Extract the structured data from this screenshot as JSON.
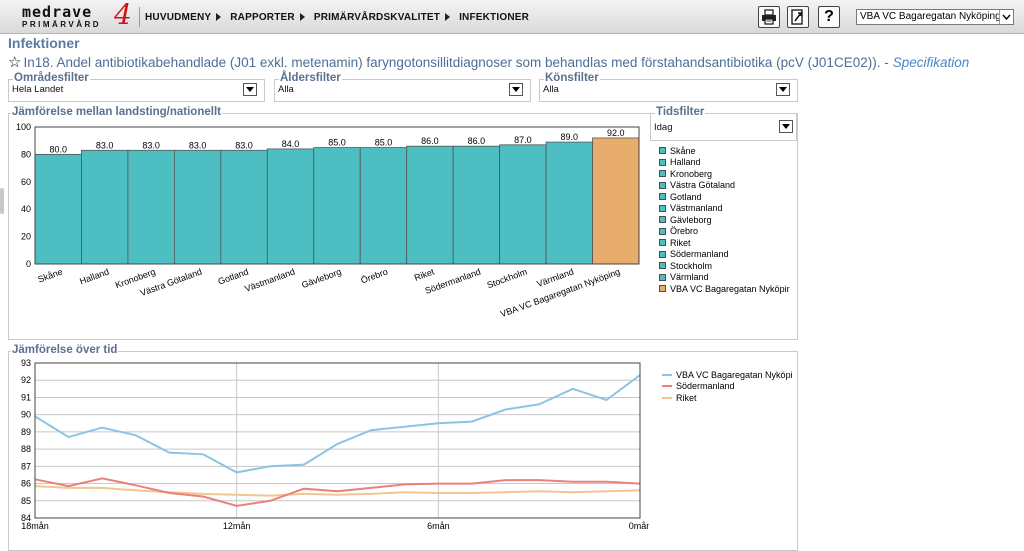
{
  "app": {
    "logo_text": "medrave",
    "logo_sub": "PRIMÄRVÅRD",
    "logo_version": "4"
  },
  "nav": [
    {
      "label": "HUVUDMENY"
    },
    {
      "label": "RAPPORTER"
    },
    {
      "label": "PRIMÄRVÅRDSKVALITET"
    },
    {
      "label": "INFEKTIONER"
    }
  ],
  "toolbar": {
    "print_icon": "printer-icon",
    "export_icon": "export-icon",
    "help_icon": "help-icon",
    "help_label": "?",
    "unit_selected": "VBA VC Bagaregatan Nyköping"
  },
  "page": {
    "title": "Infektioner",
    "indicator": "In18. Andel antibiotikabehandlade (J01 exkl. metenamin) faryngotonsillitdiagnoser som behandlas med förstahandsantibiotika (pcV (J01CE02)). -",
    "spec_link": "Specifikation"
  },
  "filters": {
    "area": {
      "label": "Områdesfilter",
      "value": "Hela Landet"
    },
    "age": {
      "label": "Åldersfilter",
      "value": "Alla"
    },
    "sex": {
      "label": "Könsfilter",
      "value": "Alla"
    },
    "time": {
      "label": "Tidsfilter",
      "value": "Idag"
    }
  },
  "colors": {
    "teal": "#4dbfc2",
    "orange": "#e8ac6c",
    "blue_line": "#8ec4e2",
    "red_line": "#e9827a",
    "orange_line": "#f2c691"
  },
  "chart_data": [
    {
      "type": "bar",
      "title": "Jämförelse mellan landsting/nationellt",
      "categories": [
        "Skåne",
        "Halland",
        "Kronoberg",
        "Västra Götaland",
        "Gotland",
        "Västmanland",
        "Gävleborg",
        "Örebro",
        "Riket",
        "Södermanland",
        "Stockholm",
        "Värmland",
        "VBA VC Bagaregatan Nyköping"
      ],
      "values": [
        80.0,
        83.0,
        83.0,
        83.0,
        83.0,
        84.0,
        85.0,
        85.0,
        86.0,
        86.0,
        87.0,
        89.0,
        92.0
      ],
      "value_labels": [
        "80.0",
        "83.0",
        "83.0",
        "83.0",
        "83.0",
        "84.0",
        "85.0",
        "85.0",
        "86.0",
        "86.0",
        "87.0",
        "89.0",
        "92.0"
      ],
      "highlight_index": 12,
      "ylim": [
        0,
        100
      ],
      "yticks": [
        0,
        20,
        40,
        60,
        80,
        100
      ],
      "legend": [
        "Skåne",
        "Halland",
        "Kronoberg",
        "Västra Götaland",
        "Gotland",
        "Västmanland",
        "Gävleborg",
        "Örebro",
        "Riket",
        "Södermanland",
        "Stockholm",
        "Värmland",
        "VBA VC Bagaregatan Nyköpir"
      ],
      "legend_placement": "right",
      "grid": true
    },
    {
      "type": "line",
      "title": "Jämförelse över tid",
      "x": [
        18,
        17,
        16,
        15,
        14,
        13,
        12,
        11,
        10,
        9,
        8,
        7,
        6,
        5,
        4,
        3,
        2,
        1,
        0
      ],
      "xticks": [
        "18mån",
        "12mån",
        "6mån",
        "0mån"
      ],
      "xtick_values": [
        18,
        12,
        6,
        0
      ],
      "ylim": [
        84,
        93
      ],
      "yticks": [
        84,
        85,
        86,
        87,
        88,
        89,
        90,
        91,
        92,
        93
      ],
      "series": [
        {
          "name": "VBA VC Bagaregatan Nyköpir",
          "color": "#8ec4e2",
          "values": [
            89.9,
            88.7,
            89.25,
            88.8,
            87.8,
            87.7,
            86.65,
            87.0,
            87.1,
            88.3,
            89.1,
            89.3,
            89.5,
            89.6,
            90.3,
            90.6,
            91.5,
            90.85,
            92.3
          ]
        },
        {
          "name": "Södermanland",
          "color": "#e9827a",
          "values": [
            86.25,
            85.85,
            86.3,
            85.9,
            85.45,
            85.25,
            84.7,
            85.0,
            85.7,
            85.55,
            85.75,
            85.95,
            86.0,
            86.0,
            86.2,
            86.2,
            86.1,
            86.1,
            86.0
          ]
        },
        {
          "name": "Riket",
          "color": "#f2c691",
          "values": [
            85.85,
            85.75,
            85.75,
            85.6,
            85.5,
            85.4,
            85.35,
            85.3,
            85.4,
            85.35,
            85.4,
            85.5,
            85.45,
            85.45,
            85.5,
            85.55,
            85.5,
            85.55,
            85.6
          ]
        }
      ],
      "legend_placement": "right",
      "grid": true
    }
  ]
}
